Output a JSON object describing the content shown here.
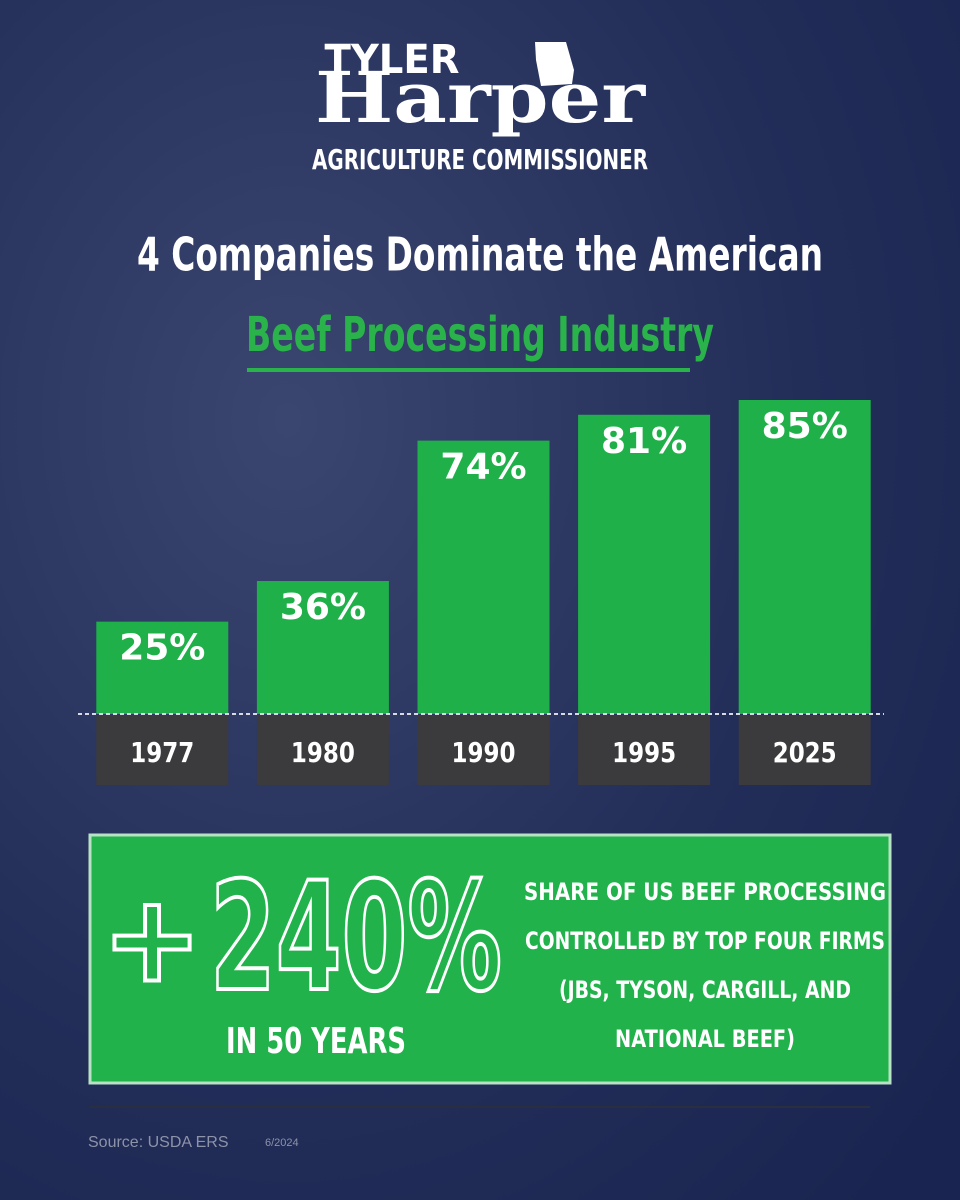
{
  "header": {
    "first_name": "TYLER",
    "last_name": "Harper",
    "office": "AGRICULTURE COMMISSIONER"
  },
  "chart_data": {
    "type": "bar",
    "title": "4 Companies Dominate the American",
    "subtitle": "Beef Processing Industry",
    "categories": [
      "1977",
      "1980",
      "1990",
      "1995",
      "2025"
    ],
    "values": [
      25,
      36,
      74,
      81,
      85
    ],
    "value_labels": [
      "25%",
      "36%",
      "74%",
      "81%",
      "85%"
    ],
    "color": "#1fb04a"
  },
  "callout": {
    "sign": "+",
    "figure": "240%",
    "period": "IN 50 YEARS",
    "description": [
      "SHARE OF US BEEF PROCESSING",
      "CONTROLLED BY TOP FOUR FIRMS",
      "(JBS, TYSON, CARGILL, AND",
      "NATIONAL BEEF)"
    ]
  },
  "source": "Source: USDA ERS",
  "date": "6/2024"
}
